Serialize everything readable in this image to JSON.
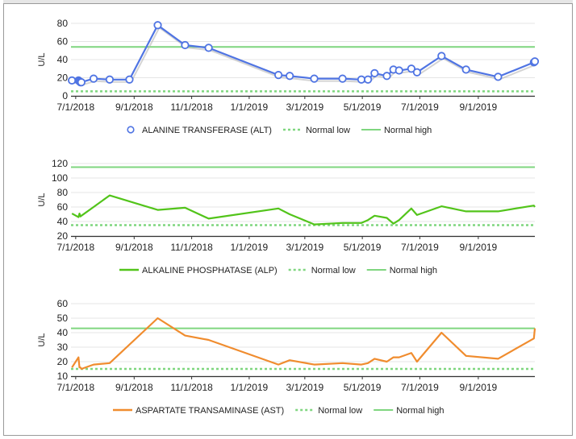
{
  "colors": {
    "alt": "#4f74e3",
    "alp": "#52c41a",
    "ast": "#f08c2e",
    "normal": "#7fd67f"
  },
  "chart_data": [
    {
      "type": "line",
      "ylabel": "U/L",
      "ylim": [
        0,
        80
      ],
      "yticks": [
        0,
        20,
        40,
        60,
        80
      ],
      "xticks": [
        "7/1/2018",
        "9/1/2018",
        "11/1/2018",
        "1/1/2019",
        "3/1/2019",
        "5/1/2019",
        "7/1/2019",
        "9/1/2019"
      ],
      "xrange": [
        "2018-06-26",
        "2019-10-31"
      ],
      "grid": true,
      "legend": "bottom",
      "markers": true,
      "series": [
        {
          "name": "ALANINE TRANSFERASE (ALT)",
          "x": [
            "2018-06-27",
            "2018-07-04",
            "2018-07-05",
            "2018-07-06",
            "2018-07-07",
            "2018-07-20",
            "2018-08-06",
            "2018-08-27",
            "2018-09-26",
            "2018-10-25",
            "2018-11-19",
            "2019-02-01",
            "2019-02-13",
            "2019-03-11",
            "2019-04-10",
            "2019-04-30",
            "2019-05-07",
            "2019-05-14",
            "2019-05-27",
            "2019-06-03",
            "2019-06-09",
            "2019-06-22",
            "2019-06-28",
            "2019-07-24",
            "2019-08-19",
            "2019-09-22",
            "2019-10-30",
            "2019-10-31"
          ],
          "y": [
            17,
            17,
            16,
            15,
            15,
            19,
            18,
            18,
            78,
            56,
            53,
            23,
            22,
            19,
            19,
            18,
            18,
            25,
            22,
            29,
            28,
            30,
            26,
            44,
            29,
            21,
            37,
            38
          ]
        },
        {
          "name": "Normal low",
          "constant": 5
        },
        {
          "name": "Normal high",
          "constant": 54
        }
      ]
    },
    {
      "type": "line",
      "ylabel": "U/L",
      "ylim": [
        20,
        120
      ],
      "yticks": [
        20,
        40,
        60,
        80,
        100,
        120
      ],
      "xticks": [
        "7/1/2018",
        "9/1/2018",
        "11/1/2018",
        "1/1/2019",
        "3/1/2019",
        "5/1/2019",
        "7/1/2019",
        "9/1/2019"
      ],
      "xrange": [
        "2018-06-26",
        "2019-10-31"
      ],
      "grid": true,
      "legend": "bottom",
      "markers": false,
      "series": [
        {
          "name": "ALKALINE PHOSPHATASE (ALP)",
          "x": [
            "2018-06-27",
            "2018-07-04",
            "2018-07-05",
            "2018-07-06",
            "2018-07-07",
            "2018-07-20",
            "2018-08-06",
            "2018-09-26",
            "2018-10-25",
            "2018-11-19",
            "2019-02-01",
            "2019-02-13",
            "2019-03-11",
            "2019-04-10",
            "2019-04-30",
            "2019-05-07",
            "2019-05-14",
            "2019-05-27",
            "2019-06-03",
            "2019-06-09",
            "2019-06-22",
            "2019-06-28",
            "2019-07-24",
            "2019-08-19",
            "2019-09-22",
            "2019-10-30",
            "2019-10-31"
          ],
          "y": [
            51,
            46,
            51,
            47,
            48,
            60,
            76,
            56,
            59,
            44,
            58,
            50,
            36,
            38,
            38,
            42,
            48,
            45,
            37,
            42,
            58,
            49,
            61,
            54,
            54,
            62,
            60
          ]
        },
        {
          "name": "Normal low",
          "constant": 35
        },
        {
          "name": "Normal high",
          "constant": 115
        }
      ]
    },
    {
      "type": "line",
      "ylabel": "U/L",
      "ylim": [
        10,
        60
      ],
      "yticks": [
        10,
        20,
        30,
        40,
        50,
        60
      ],
      "xticks": [
        "7/1/2018",
        "9/1/2018",
        "11/1/2018",
        "1/1/2019",
        "3/1/2019",
        "5/1/2019",
        "7/1/2019",
        "9/1/2019"
      ],
      "xrange": [
        "2018-06-26",
        "2019-10-31"
      ],
      "grid": true,
      "legend": "bottom",
      "markers": false,
      "series": [
        {
          "name": "ASPARTATE TRANSAMINASE (AST)",
          "x": [
            "2018-06-27",
            "2018-07-04",
            "2018-07-05",
            "2018-07-06",
            "2018-07-07",
            "2018-07-20",
            "2018-08-06",
            "2018-09-26",
            "2018-10-25",
            "2018-11-19",
            "2019-02-01",
            "2019-02-13",
            "2019-03-11",
            "2019-04-10",
            "2019-04-30",
            "2019-05-07",
            "2019-05-14",
            "2019-05-27",
            "2019-06-03",
            "2019-06-09",
            "2019-06-22",
            "2019-06-28",
            "2019-07-24",
            "2019-08-19",
            "2019-09-22",
            "2019-10-30",
            "2019-10-31"
          ],
          "y": [
            16,
            23,
            16,
            16,
            15,
            18,
            19,
            50,
            38,
            35,
            18,
            21,
            18,
            19,
            18,
            19,
            22,
            20,
            23,
            23,
            26,
            20,
            40,
            24,
            22,
            36,
            43
          ]
        },
        {
          "name": "Normal low",
          "constant": 15
        },
        {
          "name": "Normal high",
          "constant": 43
        }
      ]
    }
  ]
}
